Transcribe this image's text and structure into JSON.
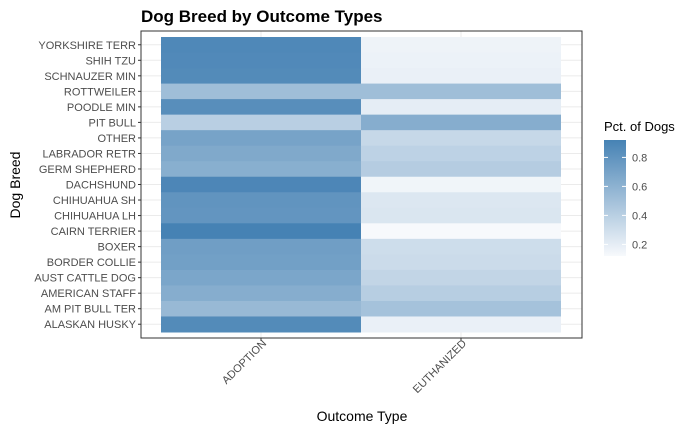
{
  "chart_data": {
    "type": "heatmap",
    "title": "Dog Breed by Outcome Types",
    "xlabel": "Outcome Type",
    "ylabel": "Dog Breed",
    "x_categories": [
      "ADOPTION",
      "EUTHANIZED"
    ],
    "y_categories": [
      "YORKSHIRE TERR",
      "SHIH TZU",
      "SCHNAUZER MIN",
      "ROTTWEILER",
      "POODLE MIN",
      "PIT BULL",
      "OTHER",
      "LABRADOR RETR",
      "GERM SHEPHERD",
      "DACHSHUND",
      "CHIHUAHUA SH",
      "CHIHUAHUA LH",
      "CAIRN TERRIER",
      "BOXER",
      "BORDER COLLIE",
      "AUST CATTLE DOG",
      "AMERICAN STAFF",
      "AM PIT BULL TER",
      "ALASKAN HUSKY"
    ],
    "series": [
      {
        "name": "ADOPTION",
        "values": [
          0.88,
          0.87,
          0.86,
          0.52,
          0.84,
          0.4,
          0.7,
          0.66,
          0.62,
          0.89,
          0.8,
          0.79,
          0.92,
          0.73,
          0.72,
          0.68,
          0.63,
          0.55,
          0.86
        ]
      },
      {
        "name": "EUTHANIZED",
        "values": [
          0.16,
          0.17,
          0.18,
          0.52,
          0.2,
          0.63,
          0.34,
          0.38,
          0.42,
          0.15,
          0.24,
          0.25,
          0.12,
          0.31,
          0.32,
          0.36,
          0.41,
          0.49,
          0.18
        ]
      }
    ],
    "legend": {
      "title": "Pct. of Dogs",
      "ticks": [
        "0.8",
        "0.6",
        "0.4",
        "0.2"
      ],
      "tick_values": [
        0.8,
        0.6,
        0.4,
        0.2
      ],
      "range": [
        0.12,
        0.92
      ],
      "low_color": "#f7f9fc",
      "high_color": "#4682b4"
    },
    "background_color": "#ffffff",
    "grid_color": "#ebebeb"
  }
}
